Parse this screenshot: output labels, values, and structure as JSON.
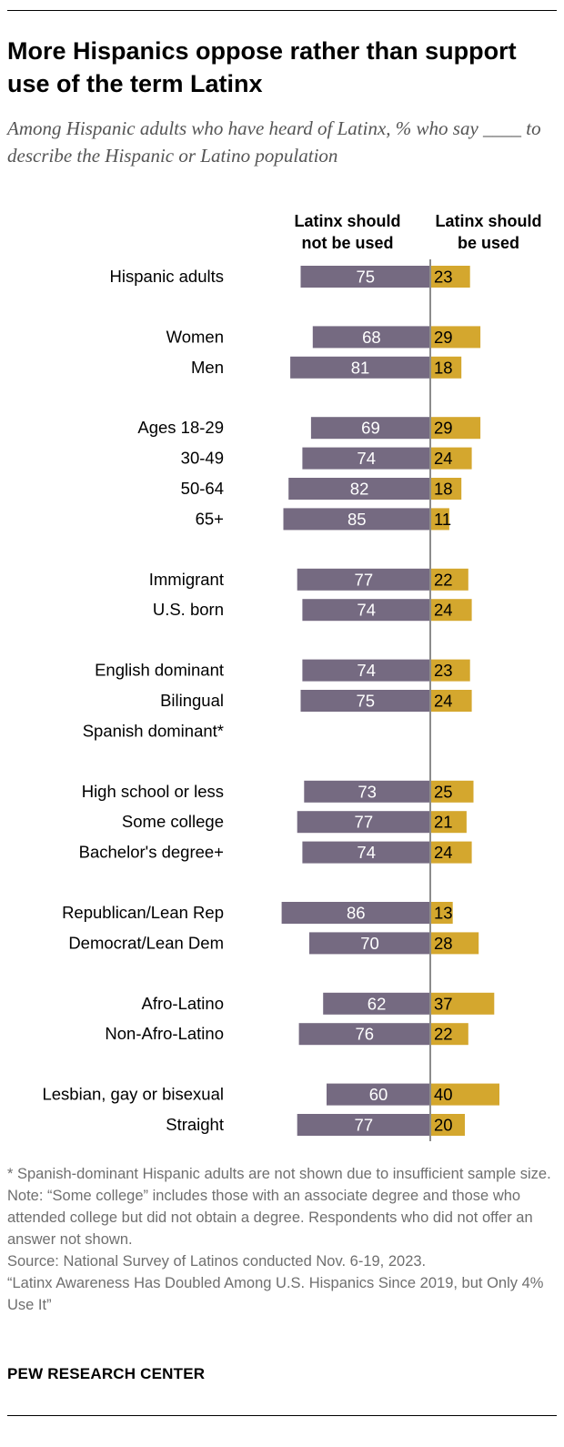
{
  "title": "More Hispanics oppose rather than support use of the term Latinx",
  "subtitle": "Among Hispanic adults who have heard of Latinx, % who say ____ to describe the Hispanic or Latino population",
  "colors": {
    "negative": "#756a81",
    "positive": "#d4a72e",
    "axis": "#8c8c8c",
    "bar_text_on_negative": "#ffffff",
    "bar_text_on_positive": "#000000"
  },
  "chart_data": {
    "type": "bar",
    "orientation": "horizontal-diverging",
    "series": [
      {
        "name": "Latinx should not be used",
        "values": [
          75,
          68,
          81,
          69,
          74,
          82,
          85,
          77,
          74,
          74,
          75,
          null,
          73,
          77,
          74,
          86,
          70,
          62,
          76,
          60,
          77
        ]
      },
      {
        "name": "Latinx should be used",
        "values": [
          23,
          29,
          18,
          29,
          24,
          18,
          11,
          22,
          24,
          23,
          24,
          null,
          25,
          21,
          24,
          13,
          28,
          37,
          22,
          40,
          20
        ]
      }
    ],
    "categories": [
      "Hispanic adults",
      "Women",
      "Men",
      "Ages 18-29",
      "30-49",
      "50-64",
      "65+",
      "Immigrant",
      "U.S. born",
      "English dominant",
      "Bilingual",
      "Spanish dominant*",
      "High school or less",
      "Some college",
      "Bachelor's degree+",
      "Republican/Lean Rep",
      "Democrat/Lean Dem",
      "Afro-Latino",
      "Non-Afro-Latino",
      "Lesbian, gay or bisexual",
      "Straight"
    ],
    "groups": [
      [
        0
      ],
      [
        1,
        2
      ],
      [
        3,
        4,
        5,
        6
      ],
      [
        7,
        8
      ],
      [
        9,
        10,
        11
      ],
      [
        12,
        13,
        14
      ],
      [
        15,
        16
      ],
      [
        17,
        18
      ],
      [
        19,
        20
      ]
    ],
    "column_headers": [
      "Latinx should\nnot be used",
      "Latinx should\nbe used"
    ]
  },
  "notes": [
    "* Spanish-dominant Hispanic adults are not shown due to insufficient sample size.",
    "Note: “Some college” includes those with an associate degree and those who attended college but did not obtain a degree. Respondents who did not offer an answer not shown.",
    "Source: National Survey of Latinos conducted Nov. 6-19, 2023.",
    "“Latinx Awareness Has Doubled Among U.S. Hispanics Since 2019, but Only 4% Use It”"
  ],
  "brand": "PEW RESEARCH CENTER"
}
